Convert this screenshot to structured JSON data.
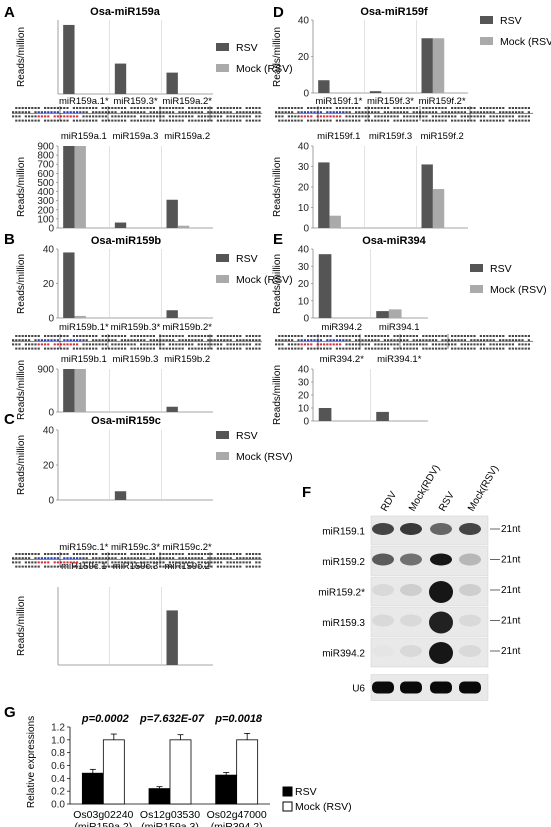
{
  "panels": {
    "A": {
      "label": "A",
      "title": "Osa-miR159a"
    },
    "B": {
      "label": "B",
      "title": "Osa-miR159b"
    },
    "C": {
      "label": "C",
      "title": "Osa-miR159c"
    },
    "D": {
      "label": "D",
      "title": "Osa-miR159f"
    },
    "E": {
      "label": "E",
      "title": "Osa-miR394"
    },
    "F": {
      "label": "F"
    },
    "G": {
      "label": "G"
    }
  },
  "legend": {
    "rsv": "RSV",
    "mock": "Mock (RSV)"
  },
  "colors": {
    "rsv": "#555555",
    "mock": "#aaaaaa",
    "axis": "#aaaaaa",
    "blue_seq": "#2b3fb8",
    "red_seq": "#d0303a"
  },
  "chart_data": [
    {
      "id": "A_top",
      "type": "bar",
      "ylabel": "Reads/million",
      "ylim": [
        0,
        900
      ],
      "yticks": [],
      "categories": [
        "miR159a.1*",
        "miR159.3*",
        "miR159a.2*"
      ],
      "series": [
        {
          "name": "RSV",
          "values": [
            840,
            370,
            260
          ]
        },
        {
          "name": "Mock (RSV)",
          "values": [
            0,
            0,
            0
          ]
        }
      ]
    },
    {
      "id": "A_bottom",
      "type": "bar",
      "ylabel": "Reads/million",
      "ylim": [
        0,
        900
      ],
      "yticks": [
        0,
        100,
        200,
        300,
        400,
        500,
        600,
        700,
        800,
        900
      ],
      "categories": [
        "miR159a.1",
        "miR159a.3",
        "miR159a.2"
      ],
      "series": [
        {
          "name": "RSV",
          "values": [
            900,
            60,
            310
          ]
        },
        {
          "name": "Mock (RSV)",
          "values": [
            900,
            0,
            25
          ]
        }
      ]
    },
    {
      "id": "B_top",
      "type": "bar",
      "ylabel": "Reads/million",
      "ylim": [
        0,
        40
      ],
      "yticks": [
        0,
        20,
        40
      ],
      "categories": [
        "miR159b.1*",
        "miR159b.3*",
        "miR159b.2*"
      ],
      "series": [
        {
          "name": "RSV",
          "values": [
            38,
            0,
            4.5
          ]
        },
        {
          "name": "Mock (RSV)",
          "values": [
            1.2,
            0,
            0
          ]
        }
      ]
    },
    {
      "id": "B_bottom",
      "type": "bar",
      "ylabel": "Reads/million",
      "ylim": [
        0,
        900
      ],
      "yticks": [
        0,
        900
      ],
      "categories": [
        "miR159b.1",
        "miR159b.3",
        "miR159b.2"
      ],
      "series": [
        {
          "name": "RSV",
          "values": [
            900,
            0,
            110
          ]
        },
        {
          "name": "Mock (RSV)",
          "values": [
            900,
            0,
            0
          ]
        }
      ]
    },
    {
      "id": "C_top",
      "type": "bar",
      "ylabel": "Reads/million",
      "ylim": [
        0,
        40
      ],
      "yticks": [
        0,
        20,
        40
      ],
      "categories": [
        "miR159c.1*",
        "miR159c.3*",
        "miR159c.2*"
      ],
      "series": [
        {
          "name": "RSV",
          "values": [
            0,
            5,
            0
          ]
        },
        {
          "name": "Mock (RSV)",
          "values": [
            0,
            0,
            0
          ]
        }
      ]
    },
    {
      "id": "C_bottom",
      "type": "bar",
      "ylabel": "Reads/million",
      "ylim": [
        0,
        40
      ],
      "yticks": [],
      "categories": [
        "miR159c.1",
        "miR159c.3",
        "miR159c.2"
      ],
      "series": [
        {
          "name": "RSV",
          "values": [
            0,
            0,
            28
          ]
        },
        {
          "name": "Mock (RSV)",
          "values": [
            0,
            0,
            0
          ]
        }
      ]
    },
    {
      "id": "D_top",
      "type": "bar",
      "ylabel": "Reads/million",
      "ylim": [
        0,
        40
      ],
      "yticks": [
        0,
        20,
        40
      ],
      "categories": [
        "miR159f.1*",
        "miR159f.3*",
        "miR159f.2*"
      ],
      "series": [
        {
          "name": "RSV",
          "values": [
            7,
            1,
            30
          ]
        },
        {
          "name": "Mock (RSV)",
          "values": [
            0,
            0,
            30
          ]
        }
      ]
    },
    {
      "id": "D_bottom",
      "type": "bar",
      "ylabel": "Reads/million",
      "ylim": [
        0,
        40
      ],
      "yticks": [
        0,
        10,
        20,
        30,
        40
      ],
      "categories": [
        "miR159f.1",
        "miR159f.3",
        "miR159f.2"
      ],
      "series": [
        {
          "name": "RSV",
          "values": [
            32,
            0,
            31
          ]
        },
        {
          "name": "Mock (RSV)",
          "values": [
            6,
            0,
            19
          ]
        }
      ]
    },
    {
      "id": "E_top",
      "type": "bar",
      "ylabel": "Reads/million",
      "ylim": [
        0,
        40
      ],
      "yticks": [
        0,
        10,
        20,
        30,
        40
      ],
      "categories": [
        "miR394.2",
        "miR394.1"
      ],
      "series": [
        {
          "name": "RSV",
          "values": [
            37,
            4
          ]
        },
        {
          "name": "Mock (RSV)",
          "values": [
            0,
            5
          ]
        }
      ]
    },
    {
      "id": "E_bottom",
      "type": "bar",
      "ylabel": "Reads/million",
      "ylim": [
        0,
        40
      ],
      "yticks": [
        0,
        10,
        20,
        30,
        40
      ],
      "categories": [
        "miR394.2*",
        "miR394.1*"
      ],
      "series": [
        {
          "name": "RSV",
          "values": [
            10,
            7
          ]
        },
        {
          "name": "Mock (RSV)",
          "values": [
            0,
            0
          ]
        }
      ]
    },
    {
      "id": "G",
      "type": "bar",
      "ylabel": "Relative expressions",
      "ylim": [
        0,
        1.2
      ],
      "yticks": [
        0,
        0.2,
        0.4,
        0.6,
        0.8,
        1.0,
        1.2
      ],
      "categories": [
        "Os03g02240 (miR159a.2)",
        "Os12g03530 (miR159a.3)",
        "Os02g47000 (miR394.2)"
      ],
      "pvalues": [
        "p=0.0002",
        "p=7.632E-07",
        "p=0.0018"
      ],
      "series": [
        {
          "name": "RSV",
          "values": [
            0.48,
            0.24,
            0.45
          ],
          "errors": [
            0.06,
            0.03,
            0.04
          ]
        },
        {
          "name": "Mock (RSV)",
          "values": [
            1.0,
            1.0,
            1.0
          ],
          "errors": [
            0.09,
            0.08,
            0.1
          ]
        }
      ]
    }
  ],
  "blot": {
    "lanes": [
      "RDV",
      "Mock(RDV)",
      "RSV",
      "Mock(RSV)"
    ],
    "rows": [
      "miR159.1",
      "miR159.2",
      "miR159.2*",
      "miR159.3",
      "miR394.2",
      "U6"
    ],
    "size_label": "21nt",
    "intensity": [
      [
        0.75,
        0.8,
        0.6,
        0.75
      ],
      [
        0.65,
        0.55,
        0.95,
        0.25
      ],
      [
        0.1,
        0.15,
        0.95,
        0.15
      ],
      [
        0.1,
        0.1,
        0.9,
        0.1
      ],
      [
        0.05,
        0.1,
        0.95,
        0.1
      ],
      [
        1,
        1,
        1,
        1
      ]
    ]
  }
}
